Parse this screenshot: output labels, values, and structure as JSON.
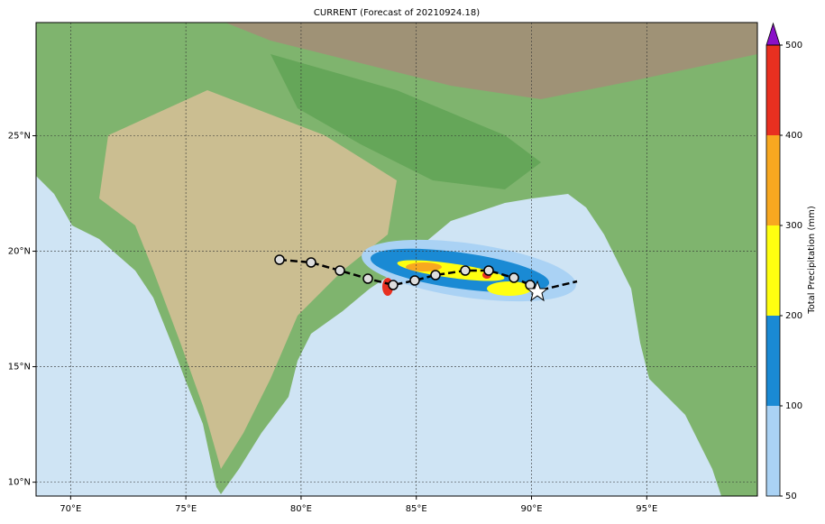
{
  "chart_data": {
    "type": "map",
    "title": "CURRENT (Forecast of 20210924.18)",
    "xlim": [
      68.5,
      99.8
    ],
    "ylim": [
      9.4,
      29.9
    ],
    "xticks": [
      {
        "value": 70,
        "label": "70°E"
      },
      {
        "value": 75,
        "label": "75°E"
      },
      {
        "value": 80,
        "label": "80°E"
      },
      {
        "value": 85,
        "label": "85°E"
      },
      {
        "value": 90,
        "label": "90°E"
      },
      {
        "value": 95,
        "label": "95°E"
      }
    ],
    "yticks": [
      {
        "value": 10,
        "label": "10°N"
      },
      {
        "value": 15,
        "label": "15°N"
      },
      {
        "value": 20,
        "label": "20°N"
      },
      {
        "value": 25,
        "label": "25°N"
      }
    ],
    "grid": true,
    "colorbar": {
      "label": "Total Precipitation (mm)",
      "ticks": [
        50,
        100,
        200,
        300,
        400,
        500
      ],
      "colors": [
        "#aad2f4",
        "#1a8ad4",
        "#ffff10",
        "#f8a820",
        "#e83020"
      ],
      "extend_color": "#8a10c8"
    }
  }
}
